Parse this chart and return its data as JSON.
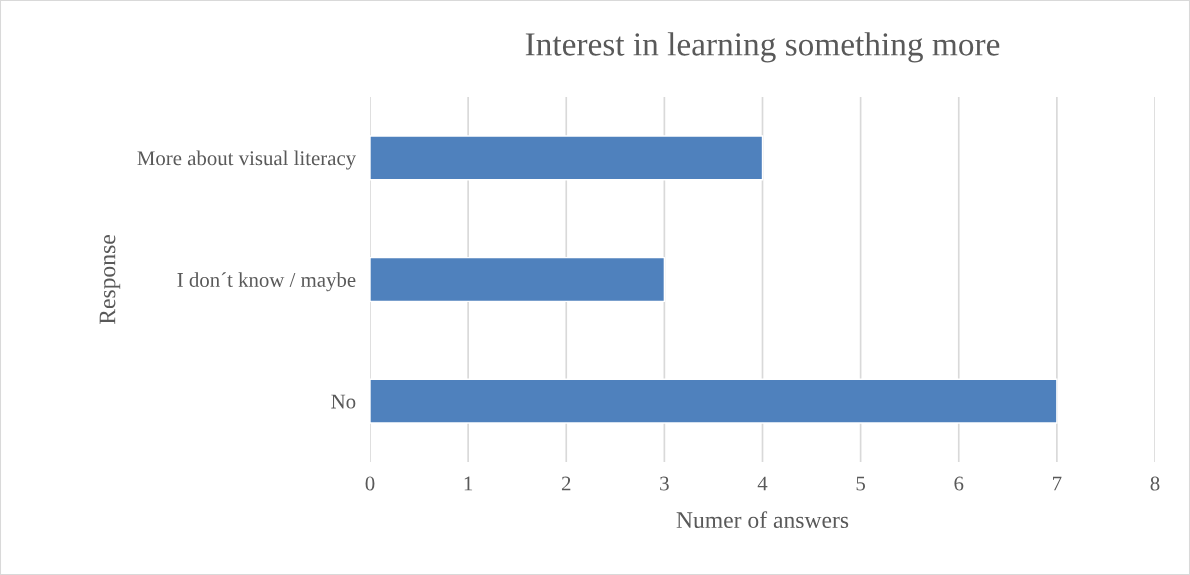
{
  "chart_data": {
    "type": "bar",
    "orientation": "horizontal",
    "title": "Interest in learning something more",
    "xlabel": "Numer of answers",
    "ylabel": "Response",
    "categories": [
      "More about visual literacy",
      "I don´t know / maybe",
      "No"
    ],
    "values": [
      4,
      3,
      7
    ],
    "color": "#4f81bd",
    "xlim": [
      0,
      8
    ],
    "xticks": [
      0,
      1,
      2,
      3,
      4,
      5,
      6,
      7,
      8
    ],
    "grid": "x"
  }
}
